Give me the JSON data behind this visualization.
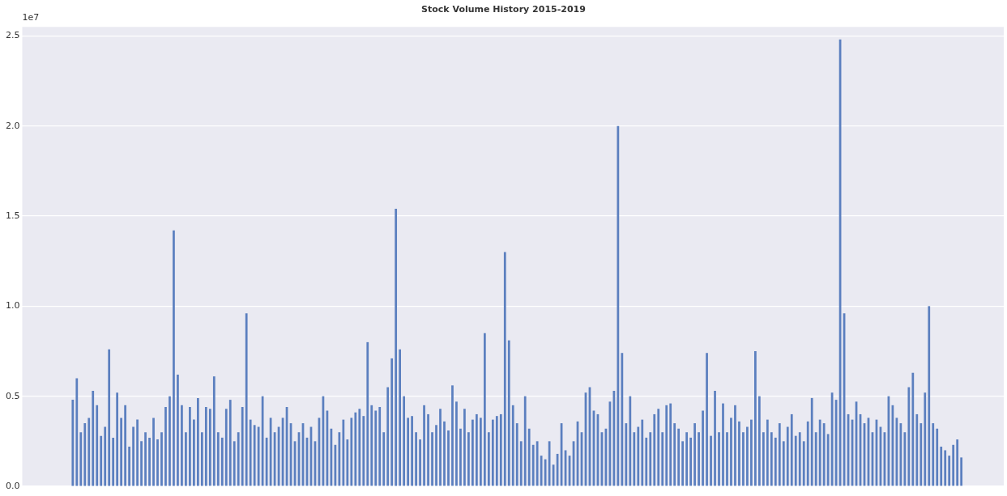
{
  "chart_data": {
    "type": "bar",
    "title": "Stock Volume History 2015-2019",
    "annotations": [
      "1e7"
    ],
    "categories": [
      null,
      null,
      null,
      null,
      null,
      null,
      null,
      null,
      null,
      null,
      null,
      null,
      null,
      null,
      null,
      null,
      null,
      null,
      null,
      null,
      null,
      null,
      null,
      null,
      null,
      null,
      null,
      null,
      null,
      null,
      null,
      null,
      null,
      null,
      null,
      null,
      null,
      null,
      null,
      null,
      null,
      null,
      null,
      null,
      null,
      null,
      null,
      null,
      null,
      null,
      null,
      null,
      null,
      null,
      null,
      null,
      null,
      null,
      null,
      null,
      null,
      null,
      null,
      null,
      null,
      null,
      null,
      null,
      null,
      null,
      null,
      null,
      null,
      null,
      null,
      null,
      null,
      null,
      null,
      null,
      null,
      null,
      null,
      null,
      null,
      null,
      null,
      null,
      null,
      null,
      null,
      null,
      null,
      null,
      null,
      null,
      null,
      null,
      null,
      null,
      null,
      null,
      null,
      null,
      null,
      null,
      null,
      null,
      null,
      null,
      null,
      null,
      null,
      null,
      null,
      null,
      null,
      null,
      null,
      null,
      null,
      null,
      null,
      null,
      null,
      null,
      null,
      null,
      null,
      null,
      null,
      null,
      null,
      null,
      null,
      null,
      null,
      null,
      null,
      null,
      null,
      null,
      null,
      null,
      null,
      null,
      null,
      null,
      null,
      null,
      null,
      null,
      null,
      null,
      null,
      null,
      null,
      null,
      null,
      null,
      null,
      null,
      null,
      null,
      null,
      null,
      null,
      null,
      null,
      null,
      null,
      null,
      null,
      null,
      null,
      null,
      null,
      null,
      null,
      null,
      null,
      null,
      null,
      null,
      null,
      null,
      null,
      null,
      null,
      null,
      null,
      null,
      null,
      null,
      null,
      null,
      null,
      null,
      null,
      null,
      null,
      null,
      null,
      null,
      null,
      null,
      null,
      null,
      null,
      null,
      null,
      null,
      null,
      null,
      null,
      null,
      null,
      null,
      null,
      null,
      null,
      null,
      null,
      null,
      null,
      null,
      null,
      null,
      null,
      null,
      null,
      null,
      null,
      null,
      null,
      null,
      null,
      null,
      null,
      null,
      null,
      null,
      null
    ],
    "values": [
      null,
      null,
      null,
      null,
      null,
      null,
      null,
      null,
      null,
      null,
      null,
      null,
      0.48,
      0.6,
      0.3,
      0.35,
      0.38,
      0.53,
      0.45,
      0.28,
      0.33,
      0.76,
      0.27,
      0.52,
      0.38,
      0.45,
      0.22,
      0.33,
      0.37,
      0.25,
      0.3,
      0.27,
      0.38,
      0.26,
      0.3,
      0.44,
      0.5,
      1.42,
      0.62,
      0.45,
      0.3,
      0.44,
      0.37,
      0.49,
      0.3,
      0.44,
      0.43,
      0.61,
      0.3,
      0.27,
      0.43,
      0.48,
      0.25,
      0.3,
      0.44,
      0.96,
      0.37,
      0.34,
      0.33,
      0.5,
      0.27,
      0.38,
      0.3,
      0.33,
      0.38,
      0.44,
      0.35,
      0.25,
      0.3,
      0.35,
      0.27,
      0.33,
      0.25,
      0.38,
      0.5,
      0.42,
      0.32,
      0.23,
      0.3,
      0.37,
      0.26,
      0.38,
      0.41,
      0.43,
      0.39,
      0.8,
      0.45,
      0.42,
      0.44,
      0.3,
      0.55,
      0.71,
      1.54,
      0.76,
      0.5,
      0.38,
      0.39,
      0.3,
      0.26,
      0.45,
      0.4,
      0.3,
      0.34,
      0.43,
      0.36,
      0.31,
      0.56,
      0.47,
      0.32,
      0.43,
      0.3,
      0.37,
      0.4,
      0.38,
      0.85,
      0.3,
      0.37,
      0.39,
      0.4,
      1.3,
      0.81,
      0.45,
      0.35,
      0.25,
      0.5,
      0.32,
      0.23,
      0.25,
      0.17,
      0.15,
      0.25,
      0.12,
      0.18,
      0.35,
      0.2,
      0.17,
      0.25,
      0.36,
      0.3,
      0.52,
      0.55,
      0.42,
      0.4,
      0.3,
      0.32,
      0.47,
      0.53,
      2.0,
      0.74,
      0.35,
      0.5,
      0.3,
      0.33,
      0.37,
      0.27,
      0.3,
      0.4,
      0.43,
      0.3,
      0.45,
      0.46,
      0.35,
      0.32,
      0.25,
      0.3,
      0.27,
      0.35,
      0.3,
      0.42,
      0.74,
      0.28,
      0.53,
      0.3,
      0.46,
      0.3,
      0.38,
      0.45,
      0.36,
      0.3,
      0.33,
      0.37,
      0.75,
      0.5,
      0.3,
      0.37,
      0.3,
      0.27,
      0.35,
      0.25,
      0.33,
      0.4,
      0.28,
      0.3,
      0.25,
      0.36,
      0.49,
      0.3,
      0.37,
      0.35,
      0.29,
      0.52,
      0.48,
      2.48,
      0.96,
      0.4,
      0.37,
      0.47,
      0.4,
      0.35,
      0.38,
      0.3,
      0.37,
      0.33,
      0.3,
      0.5,
      0.45,
      0.38,
      0.35,
      0.3,
      0.55,
      0.63,
      0.4,
      0.35,
      0.52,
      1.0,
      0.35,
      0.32,
      0.22,
      0.2,
      0.17,
      0.23,
      0.26,
      0.16,
      null,
      null,
      null,
      null,
      null,
      null,
      null,
      null,
      null,
      null
    ],
    "color": "#5b7fbf",
    "ylim": [
      0,
      2.55
    ],
    "yticks": [
      {
        "value": 0,
        "label": "0.0"
      },
      {
        "value": 0.5,
        "label": "0.5"
      },
      {
        "value": 1,
        "label": "1.0"
      },
      {
        "value": 1.5,
        "label": "1.5"
      },
      {
        "value": 2,
        "label": "2.0"
      },
      {
        "value": 2.5,
        "label": "2.5"
      }
    ],
    "grid": "y"
  }
}
